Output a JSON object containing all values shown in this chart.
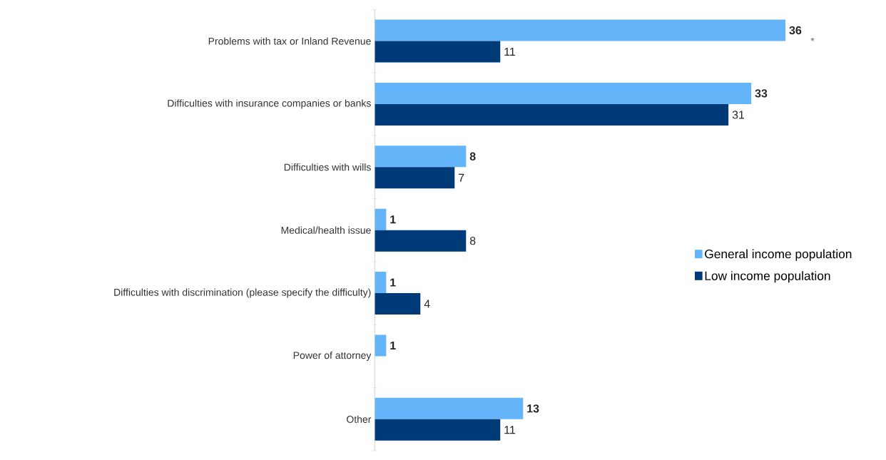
{
  "chart_data": {
    "type": "bar",
    "orientation": "horizontal",
    "categories": [
      "Problems with tax or Inland Revenue",
      "Difficulties with insurance companies or banks",
      "Difficulties with wills",
      "Medical/health issue",
      "Difficulties with discrimination (please specify the difficulty)",
      "Power of attorney",
      "Other"
    ],
    "series": [
      {
        "name": "General income population",
        "color": "#63b4f8",
        "values": [
          36,
          33,
          8,
          1,
          1,
          1,
          13
        ]
      },
      {
        "name": "Low income population",
        "color": "#003a78",
        "values": [
          11,
          31,
          7,
          8,
          4,
          null,
          11
        ]
      }
    ],
    "data_labels": true,
    "legend": "right",
    "annotations": [
      "*"
    ]
  }
}
